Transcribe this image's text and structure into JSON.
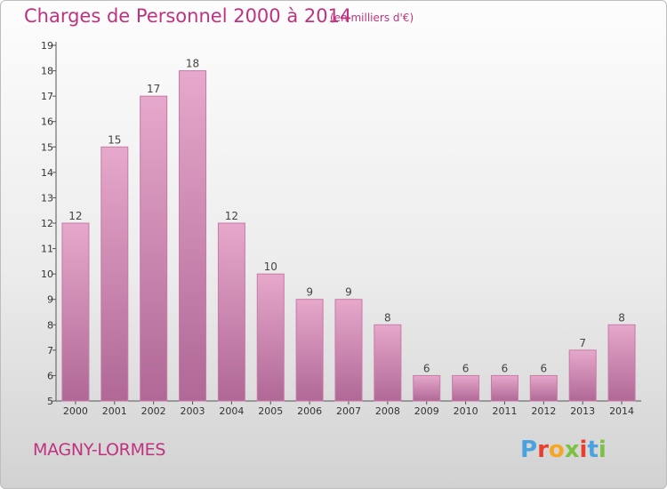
{
  "header": {
    "title": "Charges de Personnel 2000 à 2014",
    "unit": "(en milliers d'€)"
  },
  "footer": {
    "commune": "MAGNY-LORMES",
    "logo_text": "Proxiti",
    "logo_colors": [
      "#4aa3df",
      "#e8402d",
      "#f5a623",
      "#7cc242",
      "#e8402d",
      "#4aa3df",
      "#7cc242"
    ]
  },
  "colors": {
    "accent": "#c0327f",
    "bar_fill_top": "#e6a8cb",
    "bar_fill_bottom": "#b06896",
    "bar_stroke": "#c77aa6",
    "axis": "#555555"
  },
  "chart_data": {
    "type": "bar",
    "title": "Charges de Personnel 2000 à 2014",
    "subtitle": "(en milliers d'€)",
    "categories": [
      "2000",
      "2001",
      "2002",
      "2003",
      "2004",
      "2005",
      "2006",
      "2007",
      "2008",
      "2009",
      "2010",
      "2011",
      "2012",
      "2013",
      "2014"
    ],
    "values": [
      12,
      15,
      17,
      18,
      12,
      10,
      9,
      9,
      8,
      6,
      6,
      6,
      6,
      7,
      8
    ],
    "ylim": [
      5,
      19
    ],
    "yticks": [
      5,
      6,
      7,
      8,
      9,
      10,
      11,
      12,
      13,
      14,
      15,
      16,
      17,
      18,
      19
    ],
    "xlabel": "",
    "ylabel": "",
    "grid": false,
    "data_labels": true
  }
}
